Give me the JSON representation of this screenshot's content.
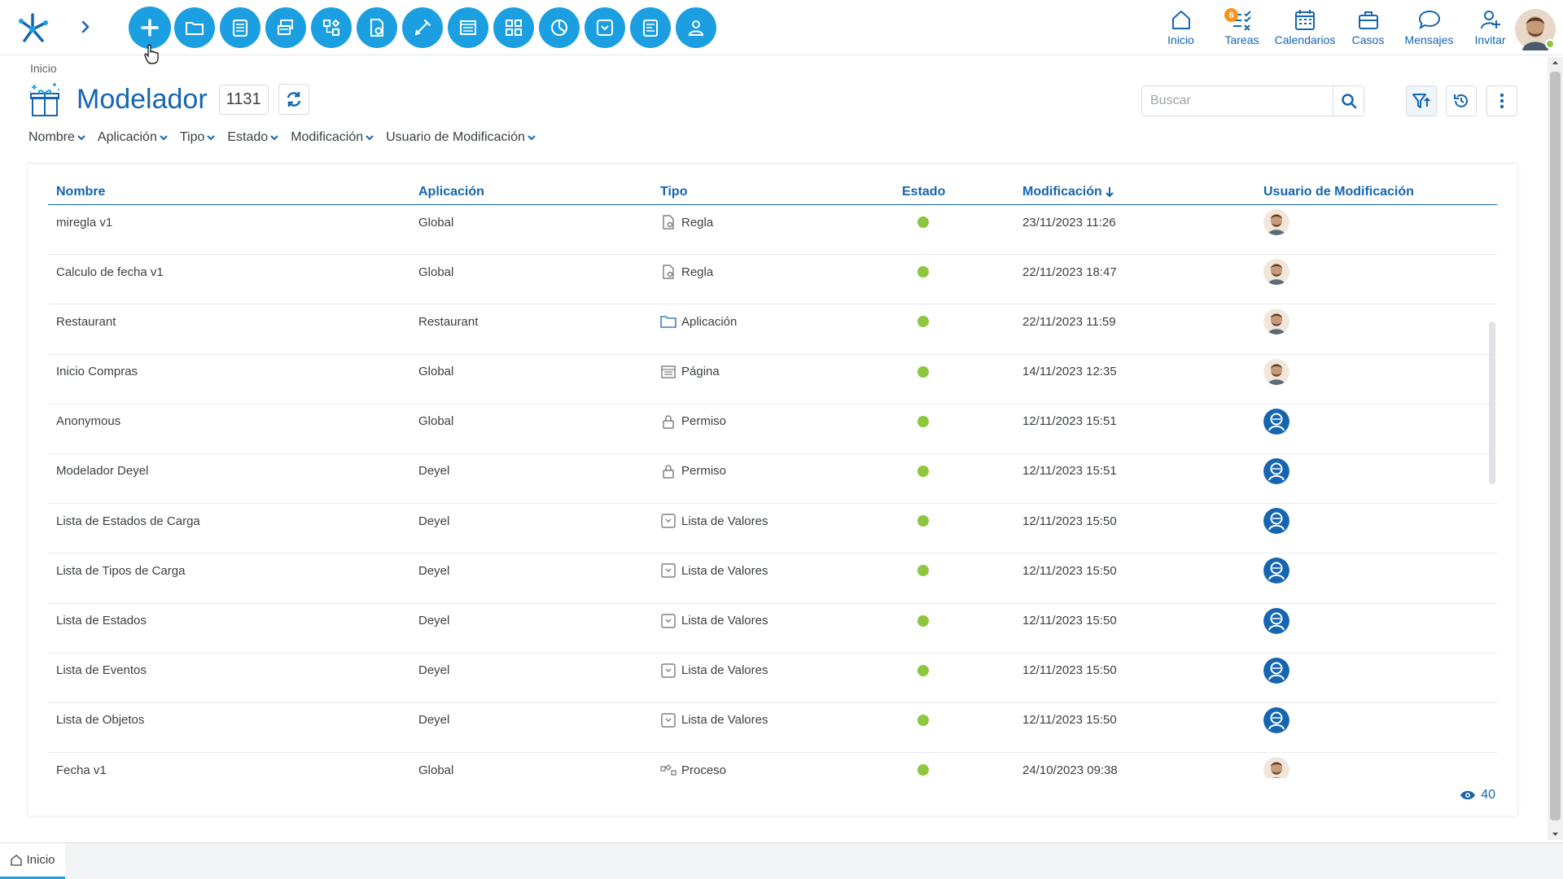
{
  "topbar": {
    "toolbar_buttons": [
      {
        "icon": "plus-icon"
      },
      {
        "icon": "folder-icon"
      },
      {
        "icon": "form-icon"
      },
      {
        "icon": "tables-icon"
      },
      {
        "icon": "process-icon"
      },
      {
        "icon": "rule-icon"
      },
      {
        "icon": "edit-icon"
      },
      {
        "icon": "page-icon"
      },
      {
        "icon": "grid-icon"
      },
      {
        "icon": "chart-icon"
      },
      {
        "icon": "dropdown-icon"
      },
      {
        "icon": "report-icon"
      },
      {
        "icon": "user-edit-icon"
      }
    ],
    "nav": [
      {
        "label": "Inicio",
        "icon": "home-icon"
      },
      {
        "label": "Tareas",
        "icon": "tasks-icon",
        "badge": "6"
      },
      {
        "label": "Calendarios",
        "icon": "calendar-icon"
      },
      {
        "label": "Casos",
        "icon": "briefcase-icon"
      },
      {
        "label": "Mensajes",
        "icon": "message-icon"
      },
      {
        "label": "Invitar",
        "icon": "invite-icon"
      }
    ]
  },
  "breadcrumb": "Inicio",
  "page": {
    "title": "Modelador",
    "count": "1131"
  },
  "search": {
    "placeholder": "Buscar"
  },
  "filters": [
    "Nombre",
    "Aplicación",
    "Tipo",
    "Estado",
    "Modificación",
    "Usuario de Modificación"
  ],
  "table": {
    "headers": [
      "Nombre",
      "Aplicación",
      "Tipo",
      "Estado",
      "Modificación",
      "Usuario de Modificación"
    ],
    "sort_column": "Modificación",
    "sort_direction": "desc",
    "rows": [
      {
        "nombre": "miregla v1",
        "aplicacion": "Global",
        "tipo": "Regla",
        "tipo_icon": "rule-icon",
        "estado": "active",
        "modificacion": "23/11/2023 11:26",
        "usuario": "person"
      },
      {
        "nombre": "Calculo de fecha v1",
        "aplicacion": "Global",
        "tipo": "Regla",
        "tipo_icon": "rule-icon",
        "estado": "active",
        "modificacion": "22/11/2023 18:47",
        "usuario": "person"
      },
      {
        "nombre": "Restaurant",
        "aplicacion": "Restaurant",
        "tipo": "Aplicación",
        "tipo_icon": "folder-icon",
        "estado": "active",
        "modificacion": "22/11/2023 11:59",
        "usuario": "person"
      },
      {
        "nombre": "Inicio Compras",
        "aplicacion": "Global",
        "tipo": "Página",
        "tipo_icon": "page-icon",
        "estado": "active",
        "modificacion": "14/11/2023 12:35",
        "usuario": "person"
      },
      {
        "nombre": "Anonymous",
        "aplicacion": "Global",
        "tipo": "Permiso",
        "tipo_icon": "lock-icon",
        "estado": "active",
        "modificacion": "12/11/2023 15:51",
        "usuario": "system"
      },
      {
        "nombre": "Modelador Deyel",
        "aplicacion": "Deyel",
        "tipo": "Permiso",
        "tipo_icon": "lock-icon",
        "estado": "active",
        "modificacion": "12/11/2023 15:51",
        "usuario": "system"
      },
      {
        "nombre": "Lista de Estados de Carga",
        "aplicacion": "Deyel",
        "tipo": "Lista de Valores",
        "tipo_icon": "dropdown-icon",
        "estado": "active",
        "modificacion": "12/11/2023 15:50",
        "usuario": "system"
      },
      {
        "nombre": "Lista de Tipos de Carga",
        "aplicacion": "Deyel",
        "tipo": "Lista de Valores",
        "tipo_icon": "dropdown-icon",
        "estado": "active",
        "modificacion": "12/11/2023 15:50",
        "usuario": "system"
      },
      {
        "nombre": "Lista de Estados",
        "aplicacion": "Deyel",
        "tipo": "Lista de Valores",
        "tipo_icon": "dropdown-icon",
        "estado": "active",
        "modificacion": "12/11/2023 15:50",
        "usuario": "system"
      },
      {
        "nombre": "Lista de Eventos",
        "aplicacion": "Deyel",
        "tipo": "Lista de Valores",
        "tipo_icon": "dropdown-icon",
        "estado": "active",
        "modificacion": "12/11/2023 15:50",
        "usuario": "system"
      },
      {
        "nombre": "Lista de Objetos",
        "aplicacion": "Deyel",
        "tipo": "Lista de Valores",
        "tipo_icon": "dropdown-icon",
        "estado": "active",
        "modificacion": "12/11/2023 15:50",
        "usuario": "system"
      },
      {
        "nombre": "Fecha v1",
        "aplicacion": "Global",
        "tipo": "Proceso",
        "tipo_icon": "process-icon",
        "estado": "active",
        "modificacion": "24/10/2023 09:38",
        "usuario": "person"
      }
    ]
  },
  "views_count": "40",
  "bottom_tab": "Inicio",
  "colors": {
    "accent": "#1b9fe0",
    "primary": "#1565b0",
    "active": "#8dc63f",
    "badge": "#f7941d"
  }
}
